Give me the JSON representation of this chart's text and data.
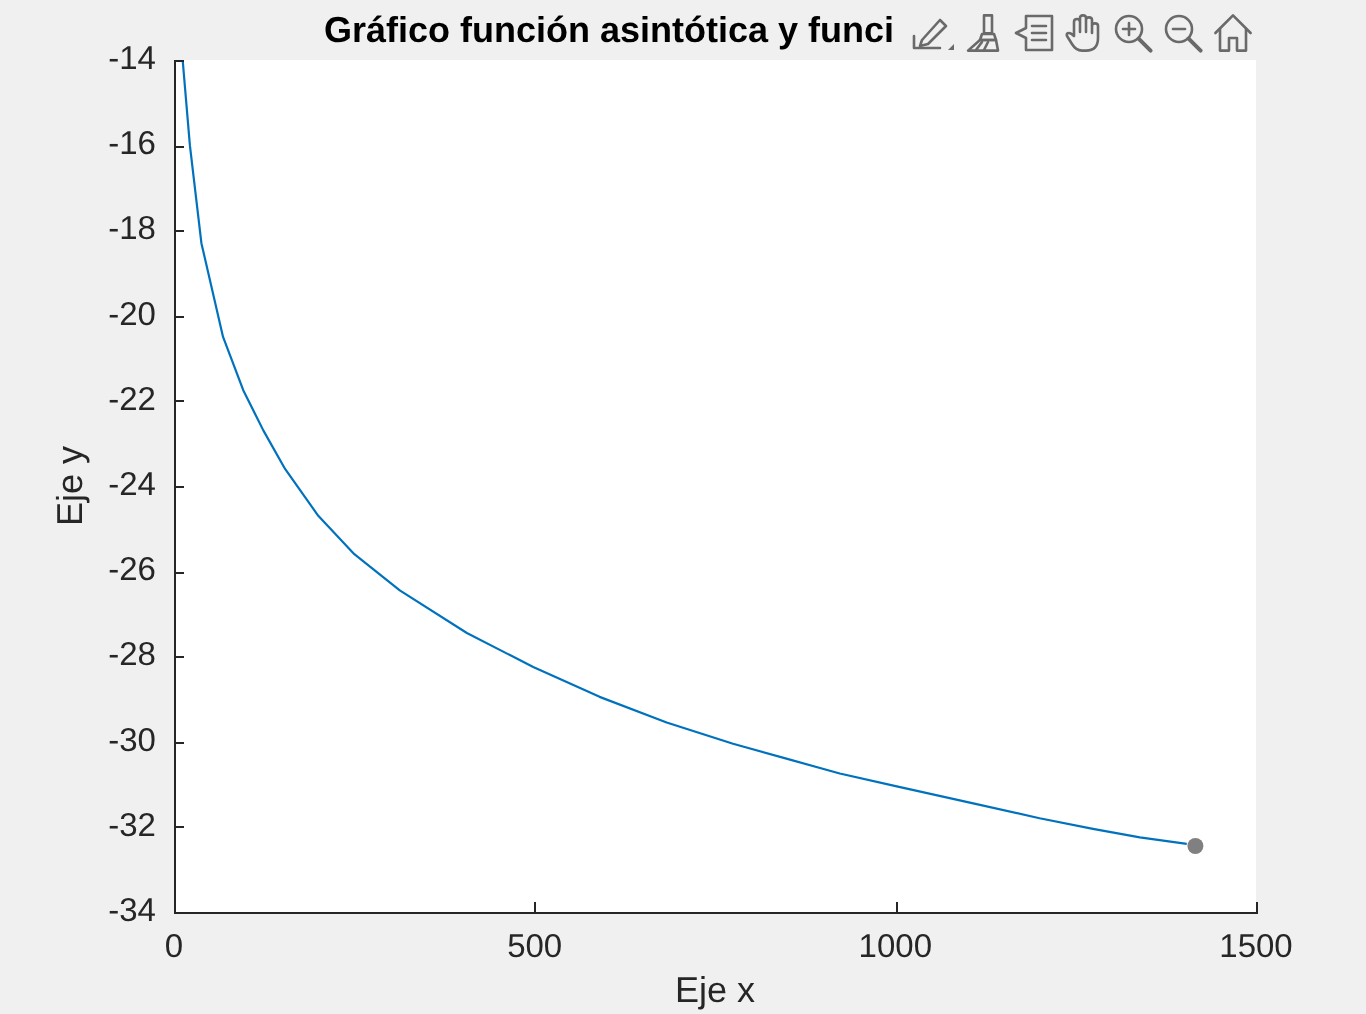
{
  "chart_data": {
    "type": "line",
    "title": "Gráfico función asintótica y funci",
    "xlabel": "Eje x",
    "ylabel": "Eje y",
    "xlim": [
      0,
      1500
    ],
    "xticks": [
      0,
      500,
      1000,
      1500
    ],
    "ylim": [
      -34,
      -14
    ],
    "yticks": [
      -34,
      -32,
      -30,
      -28,
      -26,
      -24,
      -22,
      -20,
      -18,
      -16,
      -14
    ],
    "grid": false,
    "legend": false,
    "series": [
      {
        "type": "line",
        "color": "#0072bd",
        "marker": "none",
        "x": [
          12,
          22,
          38,
          68,
          96,
          124,
          154,
          200,
          250,
          313,
          406,
          498,
          590,
          683,
          775,
          849,
          923,
          1002,
          1108,
          1200,
          1274,
          1339,
          1404
        ],
        "values": [
          -14,
          -16,
          -18.3,
          -20.5,
          -21.75,
          -22.7,
          -23.6,
          -24.7,
          -25.6,
          -26.45,
          -27.45,
          -28.25,
          -28.95,
          -29.55,
          -30.05,
          -30.4,
          -30.75,
          -31.05,
          -31.45,
          -31.8,
          -32.05,
          -32.25,
          -32.4
        ]
      },
      {
        "type": "scatter",
        "color": "#808080",
        "marker": "circle",
        "x": [
          1416
        ],
        "values": [
          -32.45
        ]
      }
    ]
  }
}
